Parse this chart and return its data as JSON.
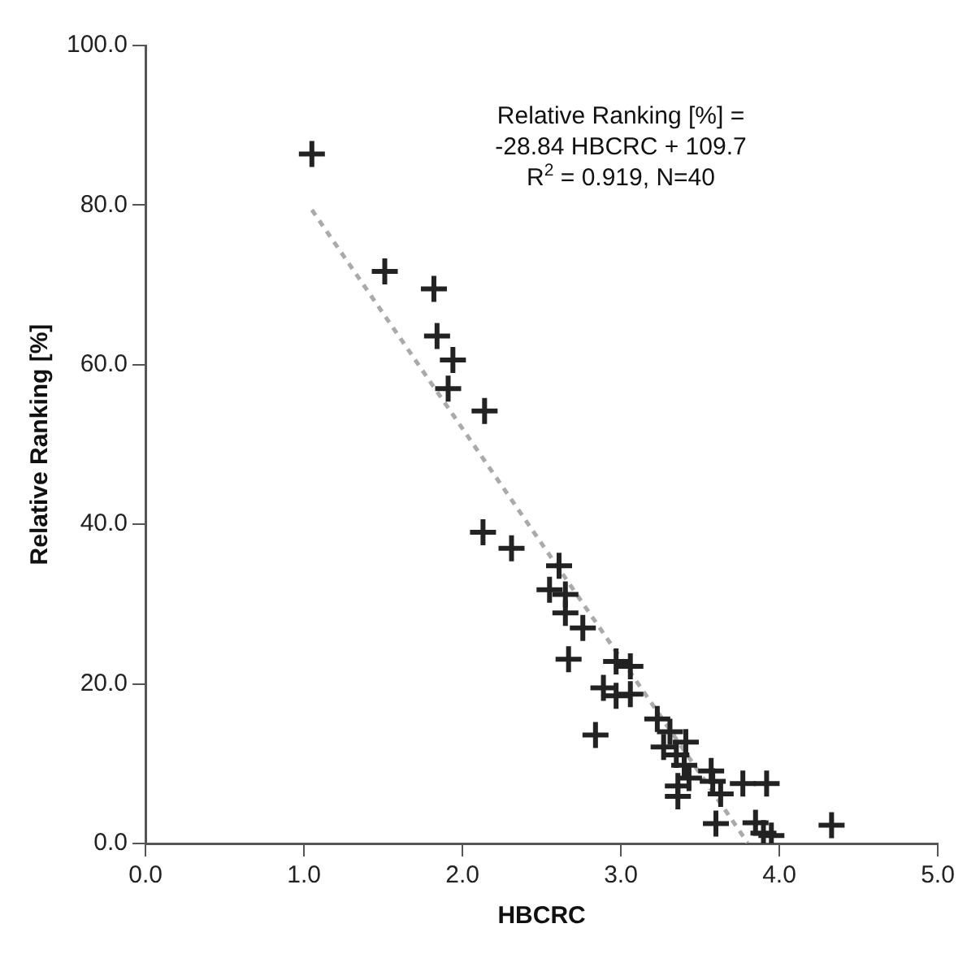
{
  "chart_data": {
    "type": "scatter",
    "xlabel": "HBCRC",
    "ylabel": "Relative Ranking [%]",
    "annotations": [
      "Relative Ranking [%] =",
      "-28.84 HBCRC + 109.7",
      "R$^{2}$ = 0.919, N=40"
    ],
    "xlim": [
      0,
      5
    ],
    "ylim": [
      0,
      100
    ],
    "xticks": [
      {
        "value": 0,
        "label": "0.0"
      },
      {
        "value": 1,
        "label": "1.0"
      },
      {
        "value": 2,
        "label": "2.0"
      },
      {
        "value": 3,
        "label": "3.0"
      },
      {
        "value": 4,
        "label": "4.0"
      },
      {
        "value": 5,
        "label": "5.0"
      }
    ],
    "yticks": [
      {
        "value": 0,
        "label": "0.0"
      },
      {
        "value": 20,
        "label": "20.0"
      },
      {
        "value": 40,
        "label": "40.0"
      },
      {
        "value": 60,
        "label": "60.0"
      },
      {
        "value": 80,
        "label": "80.0"
      },
      {
        "value": 100,
        "label": "100.0"
      }
    ],
    "grid": false,
    "legend": false,
    "series": [
      {
        "color": "#222222",
        "marker": "cross",
        "x": [
          1.05,
          1.51,
          1.82,
          1.84,
          1.94,
          1.91,
          2.14,
          2.13,
          2.31,
          2.61,
          2.55,
          2.65,
          2.65,
          2.76,
          2.67,
          2.97,
          3.06,
          2.89,
          2.97,
          3.06,
          2.84,
          3.23,
          3.31,
          3.41,
          3.27,
          3.35,
          3.4,
          3.57,
          3.43,
          3.36,
          3.58,
          3.77,
          3.92,
          3.36,
          3.63,
          3.6,
          3.85,
          3.9,
          3.95,
          4.33
        ],
        "values": [
          86.4,
          71.7,
          69.5,
          63.6,
          60.6,
          57.0,
          54.2,
          39.0,
          37.0,
          34.8,
          31.8,
          31.2,
          28.9,
          27.0,
          23.1,
          22.8,
          22.2,
          19.5,
          18.5,
          18.7,
          13.6,
          15.6,
          14.0,
          12.7,
          12.1,
          11.1,
          9.8,
          9.1,
          8.2,
          7.2,
          7.8,
          7.5,
          7.5,
          5.9,
          6.2,
          2.5,
          2.6,
          1.3,
          1.0,
          2.3
        ]
      },
      {
        "type": "line",
        "color": "#aaaaaa",
        "line_style": "dashed",
        "marker": "none",
        "x": [
          1.05,
          3.8
        ],
        "values": [
          79.4,
          0.1
        ]
      }
    ]
  }
}
